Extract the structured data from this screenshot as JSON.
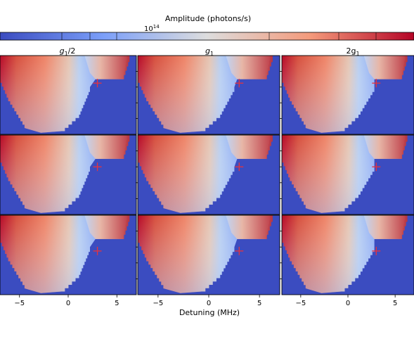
{
  "chart_data": {
    "type": "heatmap",
    "colorbar": {
      "label": "Amplitude (photons/s)",
      "tick_label_base": "10",
      "tick_label_exp": "14",
      "colormap": "coolwarm",
      "scale": "log",
      "colors": {
        "low": "#3b4cc0",
        "mid": "#dddddd",
        "high": "#b40426"
      }
    },
    "columns": [
      {
        "title_main": "g",
        "title_sub": "1",
        "title_suffix": "/2"
      },
      {
        "title_main": "g",
        "title_sub": "1",
        "title_suffix": ""
      },
      {
        "title_main": "2g",
        "title_sub": "1",
        "title_suffix": ""
      }
    ],
    "rows": 3,
    "xlabel": "Detuning (MHz)",
    "x_ticks": [
      "−5",
      "0",
      "5"
    ],
    "x_tick_values": [
      -5,
      0,
      5
    ],
    "xlim": [
      -7,
      7
    ],
    "y_ticks_per_panel": 4,
    "background_color": "#3b4cc0",
    "marker": {
      "symbol": "+",
      "x": 3.0,
      "color": "#e8323c"
    }
  }
}
